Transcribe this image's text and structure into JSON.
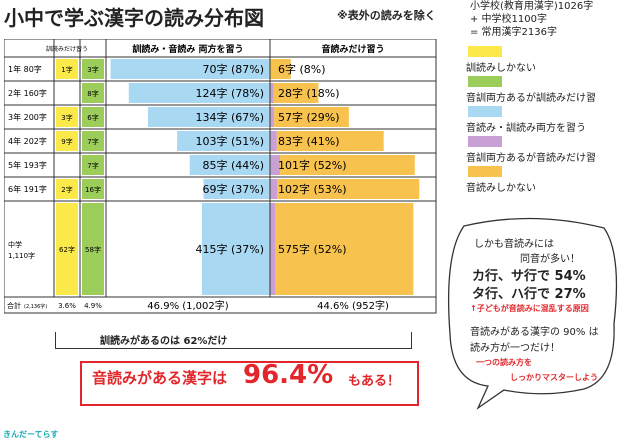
{
  "title": "小中で学ぶ漢字の読み分布図",
  "subtitle": "※表外の読みを除く",
  "top_note": [
    "小学校(教育用漢字)1026字",
    "+ 中学校1100字",
    "= 常用漢字2136字"
  ],
  "legend": [
    {
      "label": "訓読みしかない",
      "color": "#fbe94a"
    },
    {
      "label": "音訓両方あるが訓読みだけ習",
      "color": "#9ccc5a"
    },
    {
      "label": "音読み・訓読み両方を習う",
      "color": "#a9d8f3"
    },
    {
      "label": "音訓両方あるが音読みだけ習",
      "color": "#c9a0d4"
    },
    {
      "label": "音読みしかない",
      "color": "#f8c24f"
    }
  ],
  "table_headers": {
    "col_kun_only": "訓読みだけ習う",
    "col_both": "訓読み・音読み 両方を習う",
    "col_on_only": "音読みだけ習う"
  },
  "chart_data": {
    "type": "bar",
    "categories": [
      "1年 80字",
      "2年 160字",
      "3年 200字",
      "4年 202字",
      "5年 193字",
      "6年 191字",
      "中学 1,110字"
    ],
    "series": [
      {
        "name": "訓読みしかない",
        "values": [
          1,
          0,
          3,
          9,
          0,
          2,
          62
        ]
      },
      {
        "name": "音訓両方あるが訓読みだけ習",
        "values": [
          3,
          8,
          6,
          7,
          7,
          16,
          58
        ]
      },
      {
        "name": "音読み・訓読み両方を習う",
        "values": [
          70,
          124,
          134,
          103,
          85,
          69,
          415
        ]
      },
      {
        "name": "音訓両方あるが音読みだけ習",
        "values": [
          0,
          2,
          3,
          5,
          7,
          5,
          20
        ]
      },
      {
        "name": "音読みしかない",
        "values": [
          6,
          26,
          54,
          78,
          94,
          97,
          555
        ]
      }
    ],
    "labels_kun_only": [
      "1字",
      "",
      "3字",
      "9字",
      "",
      "2字",
      "62字"
    ],
    "labels_kun_only_b": [
      "3字",
      "8字",
      "6字",
      "7字",
      "7字",
      "16字",
      "58字"
    ],
    "labels_both": [
      "70字 (87%)",
      "124字 (78%)",
      "134字 (67%)",
      "103字 (51%)",
      "85字 (44%)",
      "69字 (37%)",
      "415字 (37%)"
    ],
    "labels_on": [
      "6字 (8%)",
      "28字 (18%)",
      "57字 (29%)",
      "83字 (41%)",
      "101字 (52%)",
      "102字 (53%)",
      "575字 (52%)"
    ],
    "totals": {
      "label": "合計",
      "sub": "(2,136字)",
      "kun1": "3.6%",
      "kun2": "4.9%",
      "both": "46.9% (1,002字)",
      "on": "44.6% (952字)"
    }
  },
  "bracket_text": "訓読みがあるのは 62%だけ",
  "callout": {
    "prefix": "音読みがある漢字は",
    "pct": "96.4%",
    "suffix": "もある！"
  },
  "bubble": {
    "l1": "しかも音読みには",
    "l2": "同音が多い！",
    "l3": "カ行、サ行で 54%",
    "l4": "タ行、ハ行で 27%",
    "l5": "↑子どもが音読みに混乱する原因",
    "l6": "音読みがある漢字の 90% は",
    "l7": "読み方が一つだけ！",
    "l8": "一つの読み方を",
    "l9": "しっかりマスターしよう"
  },
  "logo": "きんだーてらす"
}
